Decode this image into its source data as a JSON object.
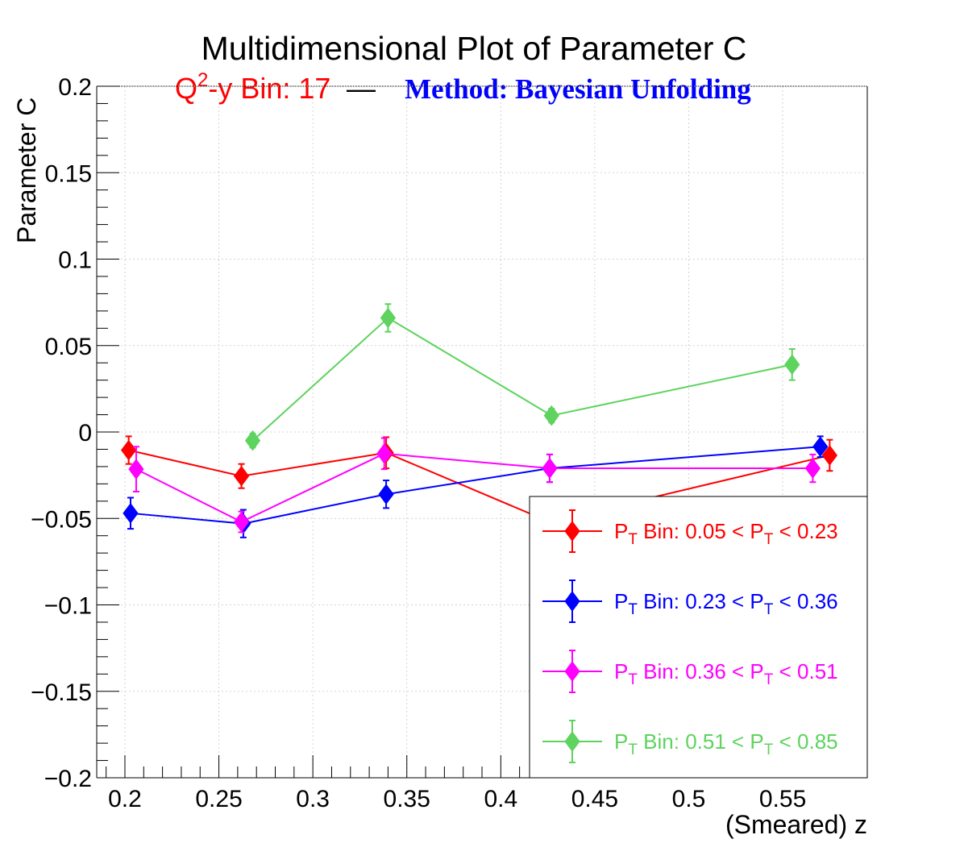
{
  "chart_data": {
    "type": "scatter",
    "title": "Multidimensional Plot of Parameter C",
    "subtitle": {
      "q2y_prefix": "Q",
      "q2y_sup": "2",
      "q2y_rest": "-y Bin: 17",
      "dash": "—",
      "method": "Method: Bayesian Unfolding"
    },
    "xlabel": "(Smeared) z",
    "ylabel": "Parameter C",
    "xlim": [
      0.185,
      0.595
    ],
    "ylim": [
      -0.2,
      0.2
    ],
    "xticks": [
      0.2,
      0.25,
      0.3,
      0.35,
      0.4,
      0.45,
      0.5,
      0.55
    ],
    "xtick_labels": [
      "0.2",
      "0.25",
      "0.3",
      "0.35",
      "0.4",
      "0.45",
      "0.5",
      "0.55"
    ],
    "yticks": [
      0.2,
      0.15,
      0.1,
      0.05,
      0,
      -0.05,
      -0.1,
      -0.15,
      -0.2
    ],
    "ytick_labels": [
      "0.2",
      "0.15",
      "0.1",
      "0.05",
      "0",
      "−0.05",
      "−0.1",
      "−0.15",
      "−0.2"
    ],
    "grid": true,
    "legend_position": "bottom-right",
    "series": [
      {
        "name_prefix": "P",
        "name_sub": "T",
        "name_mid": " Bin: 0.05 < P",
        "name_sub2": "T",
        "name_end": " < 0.23",
        "color": "#ff0000",
        "x": [
          0.202,
          0.262,
          0.339,
          0.426,
          0.575
        ],
        "y": [
          -0.0105,
          -0.0255,
          -0.012,
          -0.052,
          -0.0135
        ],
        "err": [
          0.008,
          0.007,
          0.009,
          0.008,
          0.009
        ]
      },
      {
        "name_prefix": "P",
        "name_sub": "T",
        "name_mid": " Bin: 0.23 < P",
        "name_sub2": "T",
        "name_end": " < 0.36",
        "color": "#0000ff",
        "x": [
          0.203,
          0.263,
          0.339,
          0.426,
          0.57
        ],
        "y": [
          -0.047,
          -0.053,
          -0.036,
          -0.021,
          -0.0085
        ],
        "err": [
          0.009,
          0.008,
          0.008,
          0.008,
          0.006
        ]
      },
      {
        "name_prefix": "P",
        "name_sub": "T",
        "name_mid": " Bin: 0.36 < P",
        "name_sub2": "T",
        "name_end": " < 0.51",
        "color": "#ff00ff",
        "x": [
          0.206,
          0.262,
          0.338,
          0.426,
          0.566
        ],
        "y": [
          -0.0215,
          -0.052,
          -0.0125,
          -0.021,
          -0.021
        ],
        "err": [
          0.013,
          0.006,
          0.009,
          0.008,
          0.008
        ]
      },
      {
        "name_prefix": "P",
        "name_sub": "T",
        "name_mid": " Bin: 0.51 < P",
        "name_sub2": "T",
        "name_end": " < 0.85",
        "color": "#5ed35e",
        "x": [
          0.268,
          0.34,
          0.427,
          0.555
        ],
        "y": [
          -0.005,
          0.066,
          0.0095,
          0.039
        ],
        "err": [
          0.004,
          0.008,
          0.004,
          0.009
        ]
      }
    ]
  }
}
